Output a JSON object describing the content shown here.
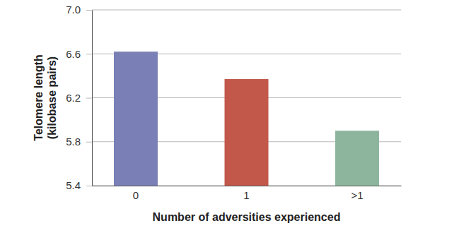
{
  "chart_data": {
    "type": "bar",
    "x_label": "Number of adversities experienced",
    "y_label": "Telomere length\n(kilobase pairs)",
    "categories": [
      "0",
      "1",
      ">1"
    ],
    "values": [
      6.62,
      6.37,
      5.9
    ],
    "colors": [
      "#7a7fb5",
      "#c1584a",
      "#8db59d"
    ],
    "ylim": [
      5.4,
      7.0
    ],
    "yticks": [
      5.4,
      5.8,
      6.2,
      6.6,
      {
        "value": 7,
        "label": "7.0"
      }
    ],
    "grid": true
  }
}
